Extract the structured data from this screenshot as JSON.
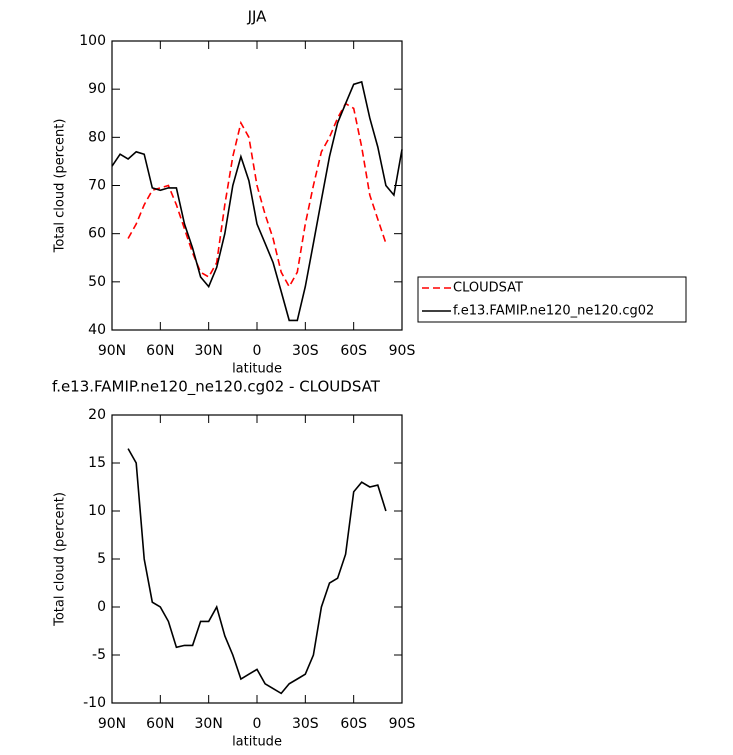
{
  "chart_data": [
    {
      "type": "line",
      "title": "JJA",
      "xlabel": "latitude",
      "ylabel": "Total cloud (percent)",
      "x": [
        90,
        85,
        80,
        75,
        70,
        65,
        60,
        55,
        50,
        45,
        40,
        35,
        30,
        25,
        20,
        15,
        10,
        5,
        0,
        -5,
        -10,
        -15,
        -20,
        -25,
        -30,
        -35,
        -40,
        -45,
        -50,
        -55,
        -60,
        -65,
        -70,
        -75,
        -80,
        -85,
        -90
      ],
      "series": [
        {
          "name": "CLOUDSAT",
          "color": "#ff0000",
          "linestyle": "dashed",
          "values": [
            null,
            null,
            59,
            62,
            66,
            69,
            69.5,
            70,
            66,
            61,
            56,
            52,
            51,
            54,
            66,
            76,
            83,
            80,
            70,
            64,
            59,
            52,
            49,
            52,
            62,
            70,
            77,
            80,
            84,
            87,
            86,
            78,
            68,
            63,
            58,
            null,
            null
          ]
        },
        {
          "name": "f.e13.FAMIP.ne120_ne120.cg02",
          "color": "#000000",
          "linestyle": "solid",
          "values": [
            74,
            76.5,
            75.5,
            77,
            76.5,
            69.5,
            69,
            69.5,
            69.5,
            62,
            57,
            51,
            49,
            53,
            60,
            70,
            76,
            71,
            62,
            58,
            54,
            48,
            42,
            42,
            49,
            58,
            67,
            76,
            83,
            87,
            91,
            91.5,
            84,
            78,
            70,
            68,
            77.5
          ]
        }
      ],
      "xlim": [
        90,
        -90
      ],
      "xticks": [
        {
          "value": 90,
          "label": "90N"
        },
        {
          "value": 60,
          "label": "60N"
        },
        {
          "value": 30,
          "label": "30N"
        },
        0,
        {
          "value": -30,
          "label": "30S"
        },
        {
          "value": -60,
          "label": "60S"
        },
        {
          "value": -90,
          "label": "90S"
        }
      ],
      "ylim": [
        40,
        100
      ],
      "yticks": [
        40,
        50,
        60,
        70,
        80,
        90,
        100
      ],
      "grid": false,
      "legend": "right"
    },
    {
      "type": "line",
      "title": "f.e13.FAMIP.ne120_ne120.cg02 - CLOUDSAT",
      "xlabel": "latitude",
      "ylabel": "Total cloud (percent)",
      "x": [
        90,
        85,
        80,
        75,
        70,
        65,
        60,
        55,
        50,
        45,
        40,
        35,
        30,
        25,
        20,
        15,
        10,
        5,
        0,
        -5,
        -10,
        -15,
        -20,
        -25,
        -30,
        -35,
        -40,
        -45,
        -50,
        -55,
        -60,
        -65,
        -70,
        -75,
        -80,
        -85,
        -90
      ],
      "values": [
        null,
        null,
        16.5,
        15,
        5,
        0.5,
        0,
        -1.5,
        -4.2,
        -4,
        -4,
        -1.5,
        -1.5,
        0,
        -3,
        -5,
        -7.5,
        -7,
        -6.5,
        -8,
        -8.5,
        -9,
        -8,
        -7.5,
        -7,
        -5,
        0,
        2.5,
        3,
        5.5,
        12,
        13,
        12.5,
        12.7,
        10,
        null,
        null
      ],
      "color": "#000000",
      "xlim": [
        90,
        -90
      ],
      "xticks": [
        {
          "value": 90,
          "label": "90N"
        },
        {
          "value": 60,
          "label": "60N"
        },
        {
          "value": 30,
          "label": "30N"
        },
        0,
        {
          "value": -30,
          "label": "30S"
        },
        {
          "value": -60,
          "label": "60S"
        },
        {
          "value": -90,
          "label": "90S"
        }
      ],
      "ylim": [
        -10,
        20
      ],
      "yticks": [
        -10,
        -5,
        0,
        5,
        10,
        15,
        20
      ],
      "grid": false
    }
  ]
}
